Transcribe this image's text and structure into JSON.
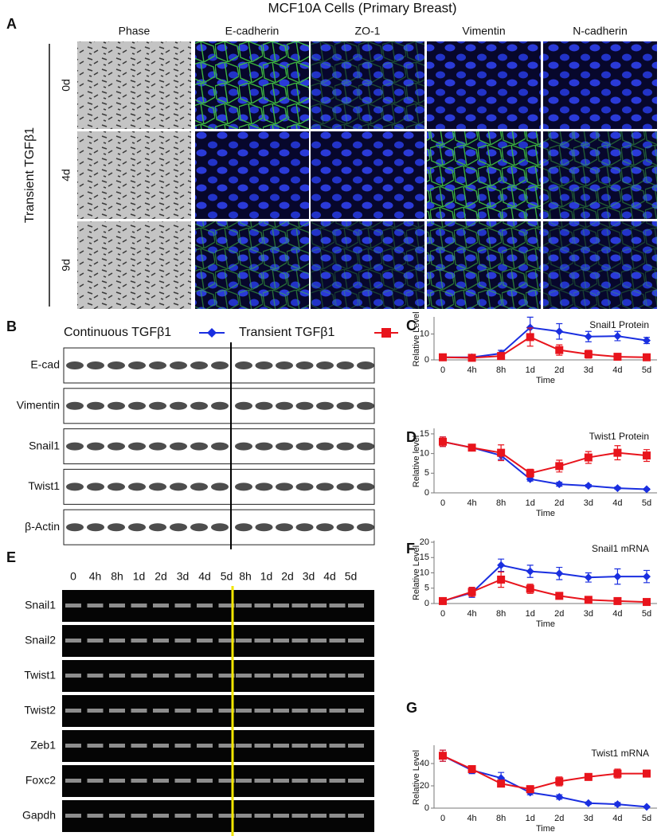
{
  "panel_a": {
    "label": "A",
    "title": "MCF10A Cells (Primary Breast)",
    "side_label": "Transient TGFβ1",
    "columns": [
      "Phase",
      "E-cadherin",
      "ZO-1",
      "Vimentin",
      "N-cadherin"
    ],
    "rows": [
      "0d",
      "4d",
      "9d"
    ]
  },
  "panel_b": {
    "label": "B",
    "legend": [
      {
        "name": "Continuous TGFβ1",
        "color": "#1a2fe0",
        "marker": "diamond"
      },
      {
        "name": "Transient TGFβ1",
        "color": "#e8141c",
        "marker": "square"
      }
    ],
    "rows": [
      "E-cad",
      "Vimentin",
      "Snail1",
      "Twist1",
      "β-Actin"
    ]
  },
  "panel_e": {
    "label": "E",
    "lanes_continuous": [
      "0",
      "4h",
      "8h",
      "1d",
      "2d",
      "3d",
      "4d",
      "5d"
    ],
    "lanes_transient": [
      "8h",
      "1d",
      "2d",
      "3d",
      "4d",
      "5d"
    ],
    "rows": [
      "Snail1",
      "Snail2",
      "Twist1",
      "Twist2",
      "Zeb1",
      "Foxc2",
      "Gapdh"
    ]
  },
  "chart_data": [
    {
      "type": "line",
      "label": "C",
      "title": "Snail1 Protein",
      "x_label": "Time",
      "y_label": "Relative Level",
      "categories": [
        "0",
        "4h",
        "8h",
        "1d",
        "2d",
        "3d",
        "4d",
        "5d"
      ],
      "ylim": [
        0,
        16
      ],
      "yticks": [
        0,
        10
      ],
      "series": [
        {
          "color": "#1a2fe0",
          "marker": "diamond",
          "values": [
            1,
            1,
            2.5,
            12.5,
            11,
            9,
            9.2,
            7.5
          ],
          "errors": [
            0,
            0,
            1.2,
            4,
            3,
            2,
            1.8,
            1.2
          ]
        },
        {
          "color": "#e8141c",
          "marker": "square",
          "values": [
            1,
            0.8,
            1.5,
            8.8,
            3.8,
            2.2,
            1.2,
            1
          ],
          "errors": [
            0,
            0,
            0.5,
            3.5,
            2,
            1.5,
            0.3,
            0.3
          ]
        }
      ]
    },
    {
      "type": "line",
      "label": "D",
      "title": "Twist1 Protein",
      "x_label": "Time",
      "y_label": "Relative level",
      "categories": [
        "0",
        "4h",
        "8h",
        "1d",
        "2d",
        "3d",
        "4d",
        "5d"
      ],
      "ylim": [
        0,
        16
      ],
      "yticks": [
        0,
        5,
        10,
        15
      ],
      "series": [
        {
          "color": "#1a2fe0",
          "marker": "diamond",
          "values": [
            13,
            11.5,
            9.5,
            3.5,
            2.2,
            1.8,
            1.2,
            0.9
          ],
          "errors": [
            1.2,
            0.5,
            1,
            0.5,
            0.5,
            0.3,
            0.3,
            0.2
          ]
        },
        {
          "color": "#e8141c",
          "marker": "square",
          "values": [
            13,
            11.5,
            10.2,
            5,
            6.8,
            9,
            10.2,
            9.5
          ],
          "errors": [
            1.2,
            0.5,
            2,
            1,
            1.5,
            1.5,
            1.8,
            1.5
          ]
        }
      ]
    },
    {
      "type": "line",
      "label": "F",
      "title": "Snail1 mRNA",
      "y_label": "Relative Level",
      "x_label": "Time",
      "categories": [
        "0",
        "4h",
        "8h",
        "1d",
        "2d",
        "3d",
        "4d",
        "5d"
      ],
      "ylim": [
        0,
        20
      ],
      "yticks": [
        0,
        5,
        10,
        15,
        20
      ],
      "series": [
        {
          "color": "#1a2fe0",
          "marker": "diamond",
          "values": [
            0.8,
            3.5,
            12.5,
            10.5,
            9.8,
            8.5,
            8.8,
            8.8
          ],
          "errors": [
            0.2,
            1.5,
            2,
            2,
            2,
            1.5,
            2.5,
            2
          ]
        },
        {
          "color": "#e8141c",
          "marker": "square",
          "values": [
            0.8,
            3.8,
            7.8,
            4.8,
            2.5,
            1.2,
            0.8,
            0.5
          ],
          "errors": [
            0.2,
            1.5,
            2.5,
            1.5,
            0.5,
            0.3,
            0.2,
            0.2
          ]
        }
      ]
    },
    {
      "type": "line",
      "label": "G",
      "title": "Twist1 mRNA",
      "y_label": "Relative Level",
      "x_label": "Time",
      "categories": [
        "0",
        "4h",
        "8h",
        "1d",
        "2d",
        "3d",
        "4d",
        "5d"
      ],
      "ylim": [
        0,
        55
      ],
      "yticks": [
        0,
        20,
        40
      ],
      "series": [
        {
          "color": "#1a2fe0",
          "marker": "diamond",
          "values": [
            47,
            34,
            27,
            14,
            10,
            4.5,
            3.5,
            1.2
          ],
          "errors": [
            5,
            3,
            5,
            2,
            2,
            1,
            1.5,
            0.5
          ]
        },
        {
          "color": "#e8141c",
          "marker": "square",
          "values": [
            47,
            35,
            22,
            17,
            24,
            28,
            31,
            31
          ],
          "errors": [
            5,
            3,
            3,
            3,
            4,
            3,
            4,
            3
          ]
        }
      ]
    }
  ]
}
